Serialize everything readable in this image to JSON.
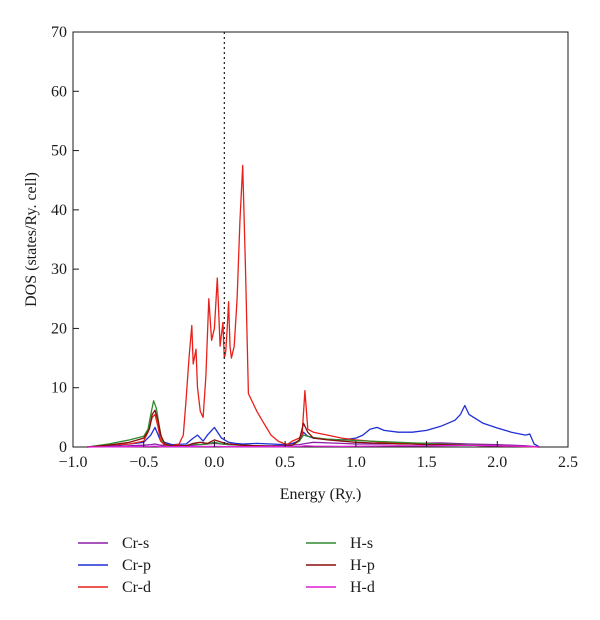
{
  "chart_data": {
    "type": "line",
    "xlabel": "Energy (Ry.)",
    "ylabel": "DOS (states/Ry. cell)",
    "xlim": [
      -1.0,
      2.5
    ],
    "ylim": [
      0,
      70
    ],
    "xticks": [
      -1.0,
      -0.5,
      0.0,
      0.5,
      1.0,
      1.5,
      2.0,
      2.5
    ],
    "xtick_labels": [
      "−1.0",
      "−0.5",
      "0.0",
      "0.5",
      "1.0",
      "1.5",
      "2.0",
      "2.5"
    ],
    "yticks": [
      0,
      10,
      20,
      30,
      40,
      50,
      60,
      70
    ],
    "ytick_labels": [
      "0",
      "10",
      "20",
      "30",
      "40",
      "50",
      "60",
      "70"
    ],
    "fermi_level": 0.07,
    "grid": false,
    "legend_position": "bottom",
    "series": [
      {
        "name": "Cr-s",
        "color": "#8b1fa8",
        "x": [
          -0.9,
          -0.75,
          -0.6,
          -0.5,
          -0.45,
          -0.42,
          -0.38,
          -0.3,
          -0.2,
          -0.15,
          -0.1,
          -0.05,
          0.0,
          0.05,
          0.1,
          0.2,
          0.3,
          0.4,
          0.5,
          0.6,
          0.65,
          0.7,
          0.8,
          0.9,
          1.0,
          1.2,
          1.4,
          1.6,
          1.8,
          2.0,
          2.2,
          2.3
        ],
        "values": [
          0,
          0.1,
          0.2,
          0.3,
          0.4,
          0.5,
          0.3,
          0.2,
          0.2,
          0.3,
          0.4,
          0.5,
          0.6,
          0.5,
          0.4,
          0.3,
          0.2,
          0.2,
          0.3,
          0.4,
          0.6,
          0.8,
          0.7,
          0.6,
          0.5,
          0.5,
          0.6,
          0.7,
          0.5,
          0.4,
          0.2,
          0
        ]
      },
      {
        "name": "Cr-p",
        "color": "#1f2fd6",
        "x": [
          -0.9,
          -0.75,
          -0.6,
          -0.5,
          -0.45,
          -0.42,
          -0.38,
          -0.3,
          -0.2,
          -0.15,
          -0.12,
          -0.08,
          -0.05,
          0.0,
          0.05,
          0.1,
          0.15,
          0.2,
          0.3,
          0.4,
          0.5,
          0.55,
          0.6,
          0.63,
          0.66,
          0.7,
          0.8,
          0.9,
          1.0,
          1.05,
          1.1,
          1.15,
          1.2,
          1.3,
          1.4,
          1.5,
          1.6,
          1.7,
          1.74,
          1.77,
          1.8,
          1.9,
          2.0,
          2.1,
          2.2,
          2.23,
          2.26,
          2.3
        ],
        "values": [
          0,
          0.2,
          0.5,
          0.8,
          2.0,
          3.3,
          1.0,
          0.4,
          0.5,
          1.5,
          2.0,
          1.0,
          2.0,
          3.3,
          1.5,
          0.8,
          0.6,
          0.5,
          0.6,
          0.5,
          0.4,
          0.6,
          1.0,
          2.5,
          1.8,
          1.5,
          1.3,
          1.2,
          1.5,
          2.0,
          3.0,
          3.3,
          2.8,
          2.5,
          2.5,
          2.8,
          3.5,
          4.5,
          5.5,
          7.0,
          5.5,
          4.0,
          3.2,
          2.5,
          2.0,
          2.2,
          0.5,
          0
        ]
      },
      {
        "name": "Cr-d",
        "color": "#e8201a",
        "x": [
          -0.9,
          -0.75,
          -0.6,
          -0.5,
          -0.47,
          -0.44,
          -0.42,
          -0.4,
          -0.38,
          -0.35,
          -0.3,
          -0.25,
          -0.22,
          -0.2,
          -0.18,
          -0.16,
          -0.15,
          -0.13,
          -0.12,
          -0.1,
          -0.08,
          -0.06,
          -0.04,
          -0.02,
          0.0,
          0.02,
          0.04,
          0.06,
          0.07,
          0.08,
          0.09,
          0.1,
          0.11,
          0.12,
          0.14,
          0.16,
          0.18,
          0.2,
          0.22,
          0.24,
          0.3,
          0.35,
          0.4,
          0.45,
          0.5,
          0.52,
          0.55,
          0.6,
          0.62,
          0.64,
          0.66,
          0.7,
          0.8,
          0.9,
          1.0,
          1.1,
          1.2,
          1.3,
          1.5,
          1.8,
          2.0,
          2.3
        ],
        "values": [
          0,
          0.3,
          0.5,
          1.0,
          2.5,
          5.0,
          5.5,
          3.5,
          1.0,
          0.3,
          0.2,
          0.5,
          2.0,
          8.0,
          15.0,
          20.5,
          14.0,
          16.5,
          10.0,
          6.0,
          5.0,
          12.0,
          25.0,
          18.0,
          20.0,
          28.5,
          17.0,
          21.0,
          15.0,
          16.0,
          20.0,
          24.5,
          17.0,
          15.0,
          17.0,
          25.0,
          38.0,
          47.5,
          30.0,
          9.0,
          6.0,
          4.0,
          2.0,
          1.0,
          0.5,
          0.5,
          1.0,
          1.5,
          2.0,
          9.5,
          3.0,
          2.5,
          2.0,
          1.5,
          1.2,
          1.0,
          0.8,
          0.6,
          0.4,
          0.3,
          0.2,
          0
        ]
      },
      {
        "name": "H-s",
        "color": "#2e8a2e",
        "x": [
          -0.9,
          -0.75,
          -0.6,
          -0.5,
          -0.47,
          -0.45,
          -0.43,
          -0.41,
          -0.39,
          -0.37,
          -0.33,
          -0.3,
          -0.2,
          -0.15,
          -0.1,
          -0.05,
          0.0,
          0.05,
          0.1,
          0.2,
          0.3,
          0.4,
          0.5,
          0.55,
          0.6,
          0.63,
          0.66,
          0.7,
          0.8,
          0.9,
          1.0,
          1.1,
          1.2,
          1.3,
          1.4,
          1.5,
          1.6,
          1.8,
          2.0,
          2.3
        ],
        "values": [
          0,
          0.5,
          1.2,
          1.8,
          3.0,
          5.5,
          7.8,
          6.5,
          3.5,
          1.0,
          0.2,
          0.1,
          0.2,
          0.5,
          0.4,
          0.5,
          0.8,
          0.5,
          0.4,
          0.3,
          0.2,
          0.1,
          0.1,
          0.3,
          1.0,
          2.0,
          1.8,
          1.6,
          1.3,
          1.2,
          1.1,
          1.0,
          0.9,
          0.8,
          0.7,
          0.6,
          0.5,
          0.4,
          0.2,
          0
        ]
      },
      {
        "name": "H-p",
        "color": "#8b0d0d",
        "x": [
          -0.9,
          -0.75,
          -0.6,
          -0.5,
          -0.46,
          -0.44,
          -0.42,
          -0.4,
          -0.38,
          -0.35,
          -0.3,
          -0.2,
          -0.15,
          -0.1,
          -0.05,
          0.0,
          0.05,
          0.1,
          0.2,
          0.3,
          0.4,
          0.5,
          0.55,
          0.6,
          0.63,
          0.66,
          0.7,
          0.8,
          0.9,
          1.0,
          1.1,
          1.2,
          1.3,
          1.4,
          1.5,
          1.6,
          1.8,
          2.0,
          2.3
        ],
        "values": [
          0,
          0.3,
          0.8,
          1.5,
          3.0,
          5.5,
          6.2,
          4.5,
          2.0,
          0.5,
          0.2,
          0.2,
          0.6,
          0.8,
          0.6,
          1.2,
          0.8,
          0.5,
          0.3,
          0.2,
          0.1,
          0.1,
          0.3,
          1.2,
          4.0,
          2.5,
          1.5,
          1.2,
          1.0,
          0.8,
          0.7,
          0.6,
          0.5,
          0.5,
          0.4,
          0.4,
          0.3,
          0.2,
          0
        ]
      },
      {
        "name": "H-d",
        "color": "#e01fd6",
        "x": [
          -0.9,
          -0.6,
          -0.45,
          -0.42,
          -0.38,
          -0.2,
          0.0,
          0.1,
          0.3,
          0.5,
          0.6,
          0.65,
          0.7,
          0.9,
          1.1,
          1.3,
          1.5,
          1.7,
          1.8,
          2.0,
          2.2,
          2.3
        ],
        "values": [
          0,
          0.05,
          0.1,
          0.15,
          0.05,
          0.05,
          0.1,
          0.05,
          0.05,
          0.05,
          0.1,
          0.2,
          0.15,
          0.1,
          0.15,
          0.2,
          0.2,
          0.25,
          0.3,
          0.2,
          0.1,
          0
        ]
      }
    ]
  }
}
